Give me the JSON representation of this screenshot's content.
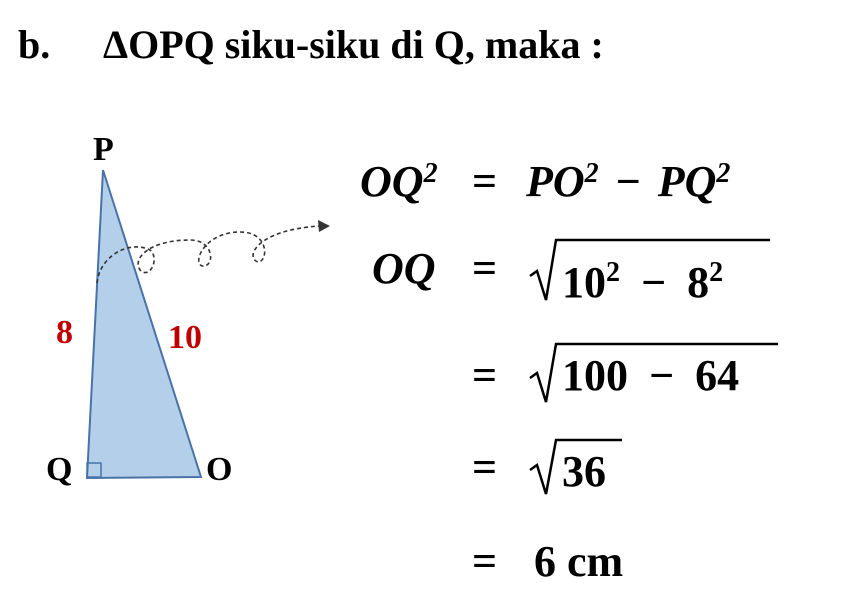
{
  "heading": {
    "label": "b.",
    "text": "ΔOPQ siku-siku di Q, maka :"
  },
  "triangle": {
    "vertices": {
      "P": "P",
      "Q": "Q",
      "O": "O"
    },
    "sides": {
      "PQ": 8,
      "PO": 10
    }
  },
  "steps": [
    {
      "lhs": {
        "base": "OQ",
        "exp": 2
      },
      "eq": "=",
      "rhs": {
        "a": "PO",
        "a_exp": 2,
        "op": "−",
        "b": "PQ",
        "b_exp": 2
      }
    },
    {
      "lhs": {
        "base": "OQ"
      },
      "eq": "=",
      "rhs": {
        "a": 10,
        "a_exp": 2,
        "op": "−",
        "b": 8,
        "b_exp": 2
      }
    },
    {
      "eq": "=",
      "rhs": {
        "a": 100,
        "op": "−",
        "b": 64
      }
    },
    {
      "eq": "=",
      "rhs": {
        "a": 36
      }
    },
    {
      "eq": "=",
      "rhs": {
        "text": "6 cm"
      }
    }
  ]
}
